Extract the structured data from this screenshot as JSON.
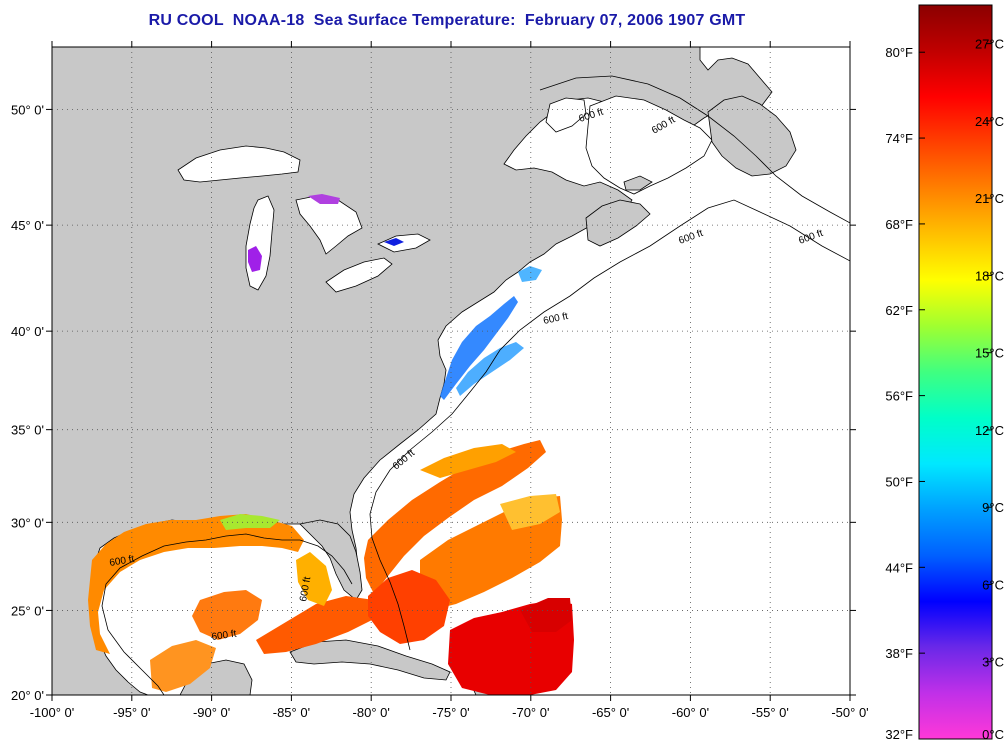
{
  "title": "RU COOL  NOAA-18  Sea Surface Temperature:  February 07, 2006 1907 GMT",
  "map": {
    "lon_range": [
      -100,
      -50
    ],
    "lat_range": [
      20,
      52.5
    ],
    "lon_ticks": [
      "-100° 0'",
      "-95° 0'",
      "-90° 0'",
      "-85° 0'",
      "-80° 0'",
      "-75° 0'",
      "-70° 0'",
      "-65° 0'",
      "-60° 0'",
      "-55° 0'",
      "-50° 0'"
    ],
    "lat_ticks": [
      "20° 0'",
      "25° 0'",
      "30° 0'",
      "35° 0'",
      "40° 0'",
      "45° 0'",
      "50° 0'"
    ],
    "grid": "dotted",
    "land_color": "#c8c8c8",
    "contour_label": "600 ft"
  },
  "colorbar": {
    "orientation": "vertical",
    "placement": "right",
    "fahrenheit_labels": [
      "80°F",
      "74°F",
      "68°F",
      "62°F",
      "56°F",
      "50°F",
      "44°F",
      "38°F",
      "32°F"
    ],
    "celsius_labels": [
      "27°C",
      "24°C",
      "21°C",
      "18°C",
      "15°C",
      "12°C",
      "9°C",
      "6°C",
      "3°C",
      "0°C"
    ],
    "range_c": [
      0,
      28.5
    ],
    "colors": [
      "#ff38d8",
      "#c030e8",
      "#6a28e8",
      "#0000ff",
      "#0060ff",
      "#00a0ff",
      "#00e8ff",
      "#00ffc8",
      "#40ff80",
      "#a0ff30",
      "#ffff00",
      "#ffc000",
      "#ff8000",
      "#ff4000",
      "#ff0000",
      "#c00000",
      "#8b0000"
    ]
  }
}
